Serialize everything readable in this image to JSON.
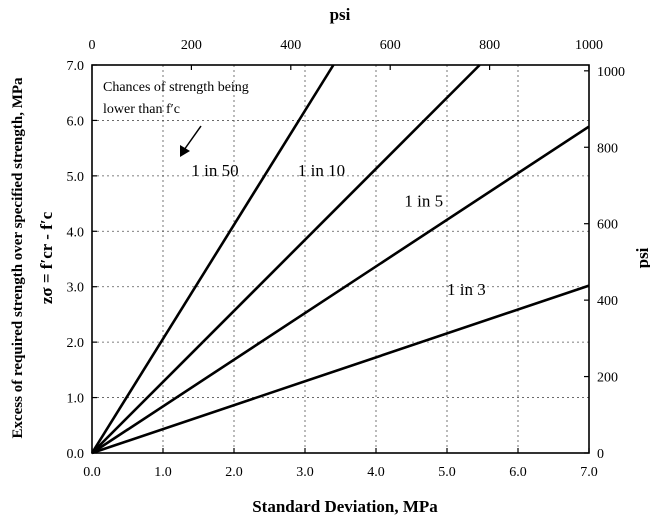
{
  "chart_data": {
    "type": "line",
    "xlabel": "Standard Deviation, MPa",
    "ylabel_line1": "Excess of required strength over specified strength, MPa",
    "ylabel_line2": "zσ = f′cr - f′c",
    "top_xlabel": "psi",
    "right_ylabel": "psi",
    "xlim": [
      0,
      7
    ],
    "ylim": [
      0,
      7
    ],
    "x_ticks": [
      "0.0",
      "1.0",
      "2.0",
      "3.0",
      "4.0",
      "5.0",
      "6.0",
      "7.0"
    ],
    "y_ticks": [
      "0.0",
      "1.0",
      "2.0",
      "3.0",
      "4.0",
      "5.0",
      "6.0",
      "7.0"
    ],
    "top_ticks": [
      "0",
      "200",
      "400",
      "600",
      "800",
      "1000"
    ],
    "right_ticks": [
      "0",
      "200",
      "400",
      "600",
      "800",
      "1000"
    ],
    "grid": true,
    "annotation": {
      "line1": "Chances of strength being",
      "line2": "lower than f′c"
    },
    "series": [
      {
        "name": "1 in 50",
        "z": 2.054,
        "x": [
          0,
          3.4
        ],
        "y": [
          0,
          7.0
        ]
      },
      {
        "name": "1 in 10",
        "z": 1.282,
        "x": [
          0,
          5.46
        ],
        "y": [
          0,
          7.0
        ]
      },
      {
        "name": "1 in 5",
        "z": 0.842,
        "x": [
          0,
          7.0
        ],
        "y": [
          0,
          5.89
        ]
      },
      {
        "name": "1 in 3",
        "z": 0.431,
        "x": [
          0,
          7.0
        ],
        "y": [
          0,
          3.02
        ]
      }
    ]
  }
}
